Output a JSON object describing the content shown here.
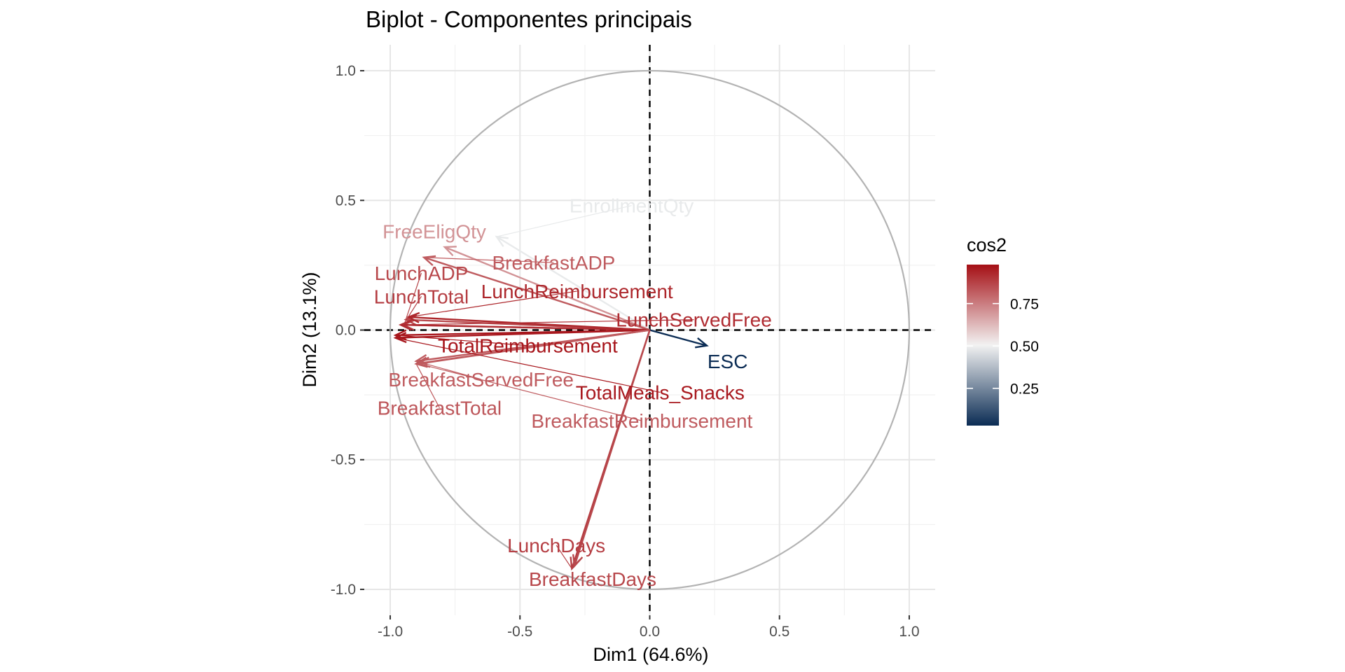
{
  "chart_data": {
    "type": "biplot",
    "title": "Biplot - Componentes principais",
    "xlabel": "Dim1 (64.6%)",
    "ylabel": "Dim2 (13.1%)",
    "xlim": [
      -1.1,
      1.1
    ],
    "ylim": [
      -1.1,
      1.1
    ],
    "xticks": [
      {
        "value": -1.0,
        "label": "-1.0"
      },
      {
        "value": -0.5,
        "label": "-0.5"
      },
      {
        "value": 0.0,
        "label": "0.0"
      },
      {
        "value": 0.5,
        "label": "0.5"
      },
      {
        "value": 1.0,
        "label": "1.0"
      }
    ],
    "yticks": [
      {
        "value": 1.0,
        "label": "1.0"
      },
      {
        "value": 0.5,
        "label": "0.5"
      },
      {
        "value": 0.0,
        "label": "0.0"
      },
      {
        "value": -0.5,
        "label": "-0.5"
      },
      {
        "value": -1.0,
        "label": "-1.0"
      }
    ],
    "grid": true,
    "correlation_circle": true,
    "legend": {
      "title": "cos2",
      "placement": "right",
      "range": [
        0.03,
        0.98
      ],
      "ticks": [
        {
          "value": 0.25,
          "label": "0.25"
        },
        {
          "value": 0.5,
          "label": "0.50"
        },
        {
          "value": 0.75,
          "label": "0.75"
        }
      ],
      "colors": {
        "low": "#0b2c54",
        "mid": "#f2f2f2",
        "high": "#a50f15"
      }
    },
    "variables": [
      {
        "name": "EnrollmentQty",
        "x": -0.59,
        "y": 0.36,
        "cos2": 0.48,
        "label_x": -0.07,
        "label_y": 0.48
      },
      {
        "name": "FreeEligQty",
        "x": -0.79,
        "y": 0.32,
        "cos2": 0.7,
        "label_x": -0.83,
        "label_y": 0.38
      },
      {
        "name": "BreakfastADP",
        "x": -0.87,
        "y": 0.28,
        "cos2": 0.82,
        "label_x": -0.37,
        "label_y": 0.26
      },
      {
        "name": "LunchADP",
        "x": -0.94,
        "y": 0.04,
        "cos2": 0.86,
        "label_x": -0.88,
        "label_y": 0.22
      },
      {
        "name": "LunchTotal",
        "x": -0.95,
        "y": 0.02,
        "cos2": 0.88,
        "label_x": -0.88,
        "label_y": 0.13
      },
      {
        "name": "LunchReimbursement",
        "x": -0.93,
        "y": 0.05,
        "cos2": 0.93,
        "label_x": -0.28,
        "label_y": 0.15
      },
      {
        "name": "LunchServedFree",
        "x": -0.96,
        "y": 0.02,
        "cos2": 0.92,
        "label_x": 0.17,
        "label_y": 0.04
      },
      {
        "name": "TotalReimbursement",
        "x": -0.98,
        "y": -0.02,
        "cos2": 0.97,
        "label_x": -0.47,
        "label_y": -0.06
      },
      {
        "name": "TotalMeals_Snacks",
        "x": -0.98,
        "y": -0.03,
        "cos2": 0.96,
        "label_x": 0.04,
        "label_y": -0.24
      },
      {
        "name": "ESC",
        "x": 0.22,
        "y": -0.06,
        "cos2": 0.03,
        "label_x": 0.3,
        "label_y": -0.12
      },
      {
        "name": "BreakfastServedFree",
        "x": -0.9,
        "y": -0.12,
        "cos2": 0.82,
        "label_x": -0.65,
        "label_y": -0.19
      },
      {
        "name": "BreakfastTotal",
        "x": -0.9,
        "y": -0.13,
        "cos2": 0.83,
        "label_x": -0.81,
        "label_y": -0.3
      },
      {
        "name": "BreakfastReimbursement",
        "x": -0.89,
        "y": -0.13,
        "cos2": 0.82,
        "label_x": -0.03,
        "label_y": -0.35
      },
      {
        "name": "LunchDays",
        "x": -0.3,
        "y": -0.92,
        "cos2": 0.88,
        "label_x": -0.36,
        "label_y": -0.83
      },
      {
        "name": "BreakfastDays",
        "x": -0.29,
        "y": -0.91,
        "cos2": 0.86,
        "label_x": -0.22,
        "label_y": -0.96
      }
    ]
  }
}
